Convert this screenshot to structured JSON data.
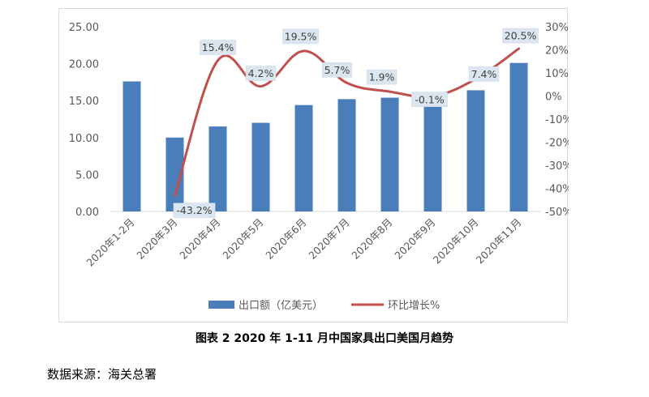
{
  "chart_data": {
    "type": "bar+line",
    "categories": [
      "2020年1-2月",
      "2020年3月",
      "2020年4月",
      "2020年5月",
      "2020年6月",
      "2020年7月",
      "2020年8月",
      "2020年9月",
      "2020年10月",
      "2020年11月"
    ],
    "series": [
      {
        "name": "出口额（亿美元）",
        "type": "bar",
        "axis": "left",
        "color": "#4a7ebb",
        "values": [
          17.6,
          10.0,
          11.5,
          12.0,
          14.4,
          15.2,
          15.4,
          15.1,
          16.4,
          20.1
        ]
      },
      {
        "name": "环比增长%",
        "type": "line",
        "axis": "right",
        "color": "#c0504d",
        "values": [
          null,
          -43.2,
          15.4,
          4.2,
          19.5,
          5.7,
          1.9,
          -0.1,
          7.4,
          20.5
        ],
        "labels": [
          "",
          "-43.2%",
          "15.4%",
          "4.2%",
          "19.5%",
          "5.7%",
          "1.9%",
          "-0.1%",
          "7.4%",
          "20.5%"
        ]
      }
    ],
    "y_left": {
      "min": 0,
      "max": 25,
      "ticks": [
        "0.00",
        "5.00",
        "10.00",
        "15.00",
        "20.00",
        "25.00"
      ]
    },
    "y_right": {
      "min": -50,
      "max": 30,
      "ticks": [
        "-50%",
        "-40%",
        "-30%",
        "-20%",
        "-10%",
        "0%",
        "10%",
        "20%",
        "30%"
      ]
    },
    "legend_position": "bottom",
    "grid": false
  },
  "caption": {
    "title": "图表 2    2020 年 1-11 月中国家具出口美国月趋势"
  },
  "source": {
    "text": "数据来源：海关总署"
  }
}
